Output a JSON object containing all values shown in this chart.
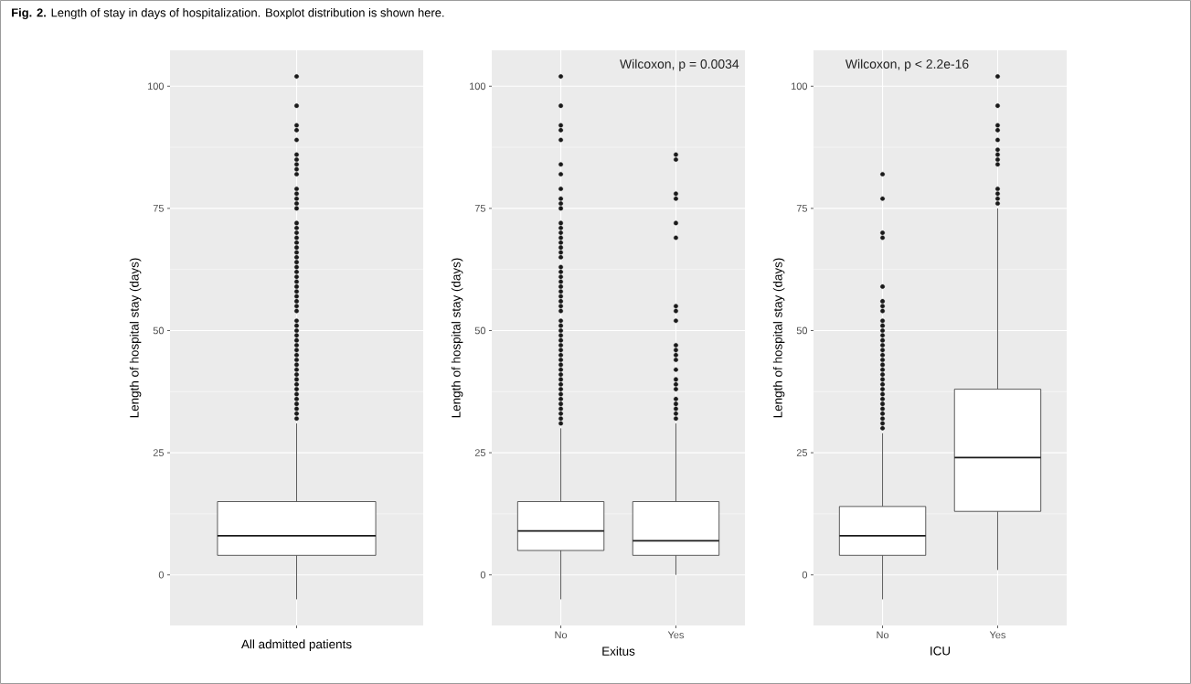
{
  "chart_data": [
    {
      "type": "box",
      "title": "**Fig. 2.** Length of stay in days of hospitalization. Boxplot distribution is shown here.",
      "categories": [
        null
      ],
      "xlabel": "All admitted patients",
      "ylabel": "Length of hospital stay (days)",
      "ylim": [
        -10.35,
        107.35
      ],
      "yticks": [
        0,
        25,
        50,
        75,
        100
      ],
      "grid": true,
      "boxes": [
        {
          "low": -5,
          "q1": 4,
          "median": 8,
          "q3": 15,
          "high": 31,
          "outliers": [
            32,
            33,
            34,
            35,
            36,
            37,
            38,
            39,
            40,
            41,
            42,
            43,
            44,
            45,
            46,
            47,
            48,
            49,
            50,
            51,
            52,
            54,
            55,
            56,
            57,
            58,
            59,
            60,
            61,
            62,
            63,
            64,
            65,
            66,
            67,
            68,
            69,
            70,
            71,
            72,
            75,
            76,
            77,
            78,
            79,
            82,
            83,
            84,
            85,
            86,
            89,
            91,
            92,
            96,
            102
          ]
        }
      ]
    },
    {
      "type": "box",
      "categories": [
        "No",
        "Yes"
      ],
      "xlabel": "Exitus",
      "ylabel": "Length of hospital stay (days)",
      "ylim": [
        -10.35,
        107.35
      ],
      "yticks": [
        0,
        25,
        50,
        75,
        100
      ],
      "grid": true,
      "annotations": [
        "Wilcoxon, p = 0.0034"
      ],
      "boxes": [
        {
          "low": -5,
          "q1": 5,
          "median": 9,
          "q3": 15,
          "high": 30,
          "outliers": [
            31,
            32,
            33,
            34,
            35,
            36,
            37,
            38,
            39,
            40,
            41,
            42,
            43,
            44,
            45,
            46,
            47,
            48,
            49,
            50,
            51,
            52,
            54,
            55,
            56,
            57,
            58,
            59,
            60,
            61,
            62,
            63,
            65,
            66,
            67,
            68,
            69,
            70,
            71,
            72,
            75,
            76,
            77,
            79,
            82,
            84,
            89,
            91,
            92,
            96,
            102
          ]
        },
        {
          "low": 0,
          "q1": 4,
          "median": 7,
          "q3": 15,
          "high": 31,
          "outliers": [
            32,
            33,
            34,
            35,
            36,
            38,
            39,
            40,
            42,
            44,
            45,
            46,
            47,
            52,
            54,
            55,
            69,
            72,
            77,
            78,
            85,
            86
          ]
        }
      ]
    },
    {
      "type": "box",
      "categories": [
        "No",
        "Yes"
      ],
      "xlabel": "ICU",
      "ylabel": "Length of hospital stay (days)",
      "ylim": [
        -10.35,
        107.35
      ],
      "yticks": [
        0,
        25,
        50,
        75,
        100
      ],
      "grid": true,
      "annotations": [
        "Wilcoxon, p < 2.2e-16"
      ],
      "boxes": [
        {
          "low": -5,
          "q1": 4,
          "median": 8,
          "q3": 14,
          "high": 29,
          "outliers": [
            30,
            31,
            32,
            33,
            34,
            35,
            36,
            37,
            38,
            39,
            40,
            41,
            42,
            43,
            44,
            45,
            46,
            47,
            48,
            49,
            50,
            51,
            52,
            54,
            55,
            56,
            59,
            69,
            70,
            77,
            82
          ]
        },
        {
          "low": 1,
          "q1": 13,
          "median": 24,
          "q3": 38,
          "high": 75,
          "outliers": [
            76,
            77,
            78,
            79,
            84,
            85,
            86,
            87,
            89,
            91,
            92,
            96,
            102
          ]
        }
      ]
    }
  ]
}
